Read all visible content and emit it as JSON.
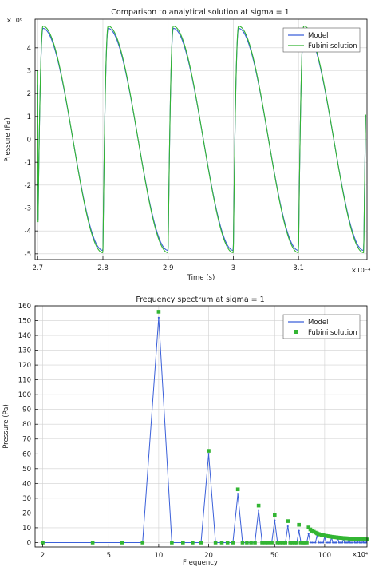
{
  "chart_data": [
    {
      "type": "line",
      "title": "Comparison to analytical solution at sigma = 1",
      "xlabel": "Time (s)",
      "ylabel": "Pressure (Pa)",
      "x_multiplier": "×10⁻⁴",
      "y_multiplier": "×10⁶",
      "xlim": [
        2.696,
        3.205
      ],
      "ylim": [
        -5.25,
        5.25
      ],
      "x_ticks": [
        "2.7",
        "2.8",
        "2.9",
        "3",
        "3.1"
      ],
      "x_tick_values": [
        2.7,
        2.8,
        2.9,
        3.0,
        3.1
      ],
      "y_ticks": [
        "4",
        "3",
        "2",
        "1",
        "0",
        "-1",
        "-2",
        "-3",
        "-4",
        "-5"
      ],
      "y_tick_values": [
        4,
        3,
        2,
        1,
        0,
        -1,
        -2,
        -3,
        -4,
        -5
      ],
      "grid": true,
      "legend_position": "top-right",
      "period": 0.1,
      "series": [
        {
          "name": "Model",
          "color": "#3a5fd9",
          "amplitude": 4.85,
          "x": [
            2.7,
            2.71,
            2.72,
            2.74,
            2.76,
            2.78,
            2.8,
            2.8,
            2.81,
            2.82,
            2.84,
            2.86,
            2.88,
            2.9,
            2.9,
            2.91,
            2.92,
            2.94,
            2.96,
            2.98,
            3.0,
            3.0,
            3.01,
            3.02,
            3.04,
            3.06,
            3.08,
            3.1,
            3.1,
            3.11,
            3.12,
            3.14,
            3.16,
            3.18,
            3.2
          ],
          "y": [
            2.4,
            4.8,
            4.4,
            2.3,
            -0.5,
            -3.4,
            -4.9,
            -4.9,
            4.8,
            4.4,
            2.3,
            -0.5,
            -3.4,
            -4.9,
            -4.9,
            4.8,
            4.4,
            2.3,
            -0.5,
            -3.4,
            -4.9,
            -4.9,
            4.8,
            4.4,
            2.3,
            -0.5,
            -3.4,
            -4.9,
            -4.9,
            4.8,
            4.4,
            2.3,
            -0.5,
            -3.4,
            -4.9
          ]
        },
        {
          "name": "Fubini solution",
          "color": "#33b533",
          "amplitude": 4.95,
          "x": [
            2.7,
            2.71,
            2.72,
            2.74,
            2.76,
            2.78,
            2.8,
            2.8,
            2.81,
            2.82,
            2.84,
            2.86,
            2.88,
            2.9,
            2.9,
            2.91,
            2.92,
            2.94,
            2.96,
            2.98,
            3.0,
            3.0,
            3.01,
            3.02,
            3.04,
            3.06,
            3.08,
            3.1,
            3.1,
            3.11,
            3.12,
            3.14,
            3.16,
            3.18,
            3.2
          ],
          "y": [
            3.0,
            4.95,
            4.5,
            2.35,
            -0.5,
            -3.5,
            -5.0,
            -5.0,
            4.95,
            4.5,
            2.35,
            -0.5,
            -3.5,
            -5.0,
            -5.0,
            4.95,
            4.5,
            2.35,
            -0.5,
            -3.5,
            -5.0,
            -5.0,
            4.95,
            4.5,
            2.35,
            -0.5,
            -3.5,
            -5.0,
            -5.0,
            4.95,
            4.5,
            2.35,
            -0.5,
            -3.5,
            -5.0
          ]
        }
      ]
    },
    {
      "type": "line",
      "title": "Frequency spectrum at sigma = 1",
      "xlabel": "Frequency",
      "ylabel": "Pressure (Pa)",
      "x_multiplier": "×10⁴",
      "x_scale": "log",
      "xlim": [
        1.8,
        180
      ],
      "ylim": [
        -3,
        160
      ],
      "x_ticks": [
        "2",
        "5",
        "10",
        "20",
        "50",
        "100"
      ],
      "x_tick_values": [
        2,
        5,
        10,
        20,
        50,
        100
      ],
      "y_ticks": [
        "160",
        "150",
        "140",
        "130",
        "120",
        "110",
        "100",
        "90",
        "80",
        "70",
        "60",
        "50",
        "40",
        "30",
        "20",
        "10",
        "0"
      ],
      "y_tick_values": [
        160,
        150,
        140,
        130,
        120,
        110,
        100,
        90,
        80,
        70,
        60,
        50,
        40,
        30,
        20,
        10,
        0
      ],
      "grid": true,
      "legend_position": "top-right",
      "series": [
        {
          "name": "Model",
          "color": "#3a5fd9",
          "style": "line",
          "x": [
            2,
            4,
            6,
            8,
            10,
            12,
            14,
            16,
            18,
            20,
            22,
            24,
            26,
            28,
            30,
            32,
            34,
            36,
            38,
            40,
            42,
            44,
            46,
            48,
            50,
            52,
            54,
            56,
            58,
            60,
            62,
            64,
            66,
            68,
            70,
            72,
            74,
            76,
            78,
            80,
            82,
            84,
            86,
            88,
            90,
            92,
            94,
            96,
            98,
            100,
            102,
            104,
            106,
            108,
            110,
            112,
            114,
            116,
            118,
            120,
            122,
            124,
            126,
            128,
            130,
            132,
            134,
            136,
            138,
            140,
            142,
            144,
            146,
            148,
            150,
            152,
            154,
            156,
            158,
            160,
            162,
            164,
            166,
            168,
            170,
            172,
            174,
            176,
            178,
            180
          ],
          "y": [
            0,
            0,
            0,
            0,
            152,
            0,
            0,
            0,
            0,
            60,
            0,
            0,
            0,
            0,
            33,
            0,
            0,
            0,
            0,
            22,
            0,
            0,
            0,
            0,
            15,
            0,
            0,
            0,
            0,
            11,
            0,
            0,
            0,
            0,
            8,
            0,
            0,
            0,
            0,
            6,
            0,
            0,
            0,
            0,
            5,
            0,
            0,
            0,
            0,
            4,
            0,
            0,
            0,
            0,
            3.5,
            0,
            0,
            0,
            0,
            3,
            0,
            0,
            0,
            0,
            2.7,
            0,
            0,
            0,
            0,
            2.4,
            0,
            0,
            0,
            0,
            2.2,
            0,
            0,
            0,
            0,
            2,
            0,
            0,
            0,
            0,
            1.8,
            0,
            0,
            0,
            0,
            1.6
          ]
        },
        {
          "name": "Fubini solution",
          "color": "#33b533",
          "style": "markers",
          "x": [
            2,
            4,
            6,
            8,
            10,
            12,
            14,
            16,
            18,
            20,
            22,
            24,
            26,
            28,
            30,
            32,
            34,
            36,
            38,
            40,
            42,
            44,
            46,
            48,
            50,
            52,
            54,
            56,
            58,
            60,
            62,
            64,
            66,
            68,
            70,
            72,
            74,
            76,
            78,
            80,
            82,
            84,
            86,
            88,
            90,
            92,
            94,
            96,
            98,
            100,
            102,
            104,
            106,
            108,
            110,
            112,
            114,
            116,
            118,
            120,
            122,
            124,
            126,
            128,
            130,
            132,
            134,
            136,
            138,
            140,
            142,
            144,
            146,
            148,
            150,
            152,
            154,
            156,
            158,
            160,
            162,
            164,
            166,
            168,
            170,
            172,
            174,
            176,
            178,
            180
          ],
          "y": [
            0,
            0,
            0,
            0,
            156,
            0,
            0,
            0,
            0,
            62,
            0,
            0,
            0,
            0,
            36,
            0,
            0,
            0,
            0,
            25,
            0,
            0,
            0,
            0,
            18.5,
            0,
            0,
            0,
            0,
            14.5,
            0,
            0,
            0,
            0,
            12,
            0,
            0,
            0,
            0,
            10.2,
            8.9,
            8,
            7.3,
            6.7,
            6.2,
            5.8,
            5.45,
            5.15,
            4.9,
            4.7,
            4.5,
            4.35,
            4.2,
            4.05,
            3.9,
            3.8,
            3.7,
            3.6,
            3.5,
            3.4,
            3.3,
            3.22,
            3.15,
            3.08,
            3.0,
            2.95,
            2.9,
            2.85,
            2.8,
            2.75,
            2.7,
            2.65,
            2.6,
            2.56,
            2.52,
            2.48,
            2.44,
            2.4,
            2.37,
            2.34,
            2.31,
            2.28,
            2.25,
            2.22,
            2.2,
            2.17,
            2.15,
            2.12,
            2.1,
            2.08
          ]
        }
      ]
    }
  ]
}
